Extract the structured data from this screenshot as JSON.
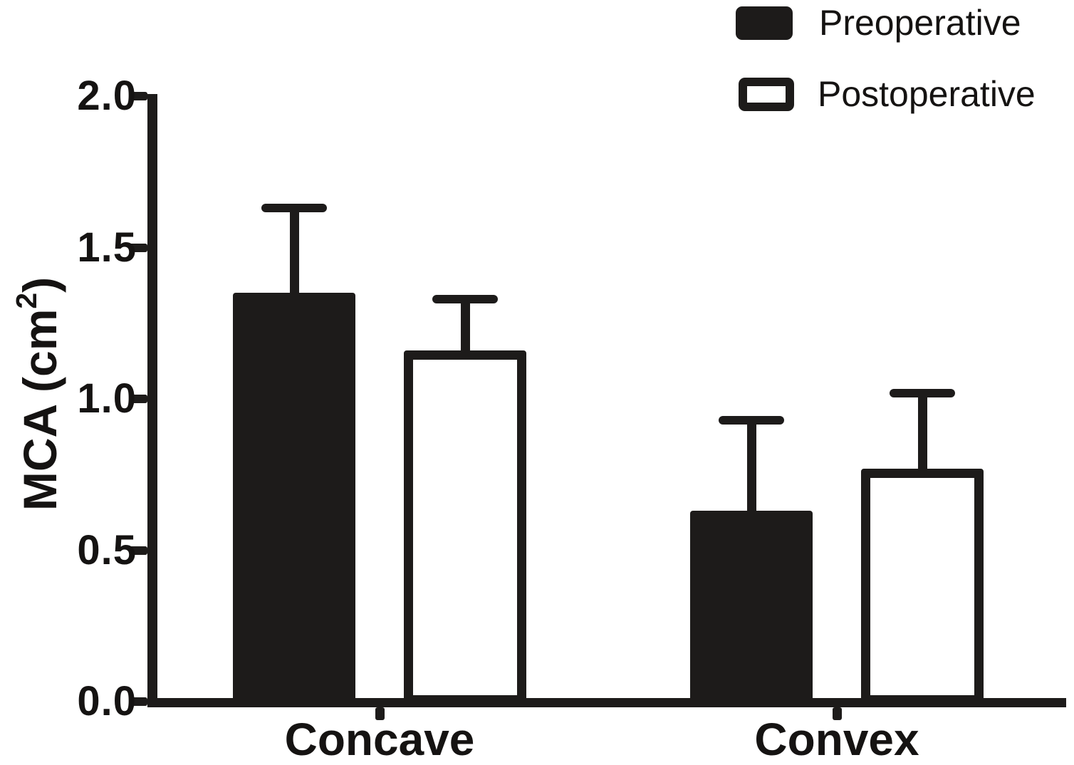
{
  "figure": {
    "background": "#ffffff",
    "ink_color": "#1d1b1a"
  },
  "legend": {
    "position": "top-right",
    "items": [
      {
        "label": "Preoperative",
        "swatch": "black-filled-rect"
      },
      {
        "label": "Postoperative",
        "swatch": "white-outlined-rect"
      }
    ]
  },
  "chart_data": {
    "type": "bar",
    "title": "",
    "xlabel": "",
    "ylabel": "MCA (cm²)",
    "ylabel_parts": {
      "main": "MCA (cm",
      "sup": "2",
      "close": ")"
    },
    "categories": [
      "Concave",
      "Convex"
    ],
    "series": [
      {
        "name": "Preoperative",
        "fill": "#1d1b1a",
        "style": "solid",
        "values": [
          1.35,
          0.63
        ],
        "upper_error": [
          0.28,
          0.3
        ]
      },
      {
        "name": "Postoperative",
        "fill": "#ffffff",
        "style": "hollow",
        "values": [
          1.16,
          0.77
        ],
        "upper_error": [
          0.17,
          0.25
        ]
      }
    ],
    "ylim": [
      0.0,
      2.0
    ],
    "yticks": [
      {
        "value": 2.0,
        "label": "2.0"
      },
      {
        "value": 1.5,
        "label": "1.5"
      },
      {
        "value": 1.0,
        "label": "1.0"
      },
      {
        "value": 0.5,
        "label": "0.5"
      },
      {
        "value": 0.0,
        "label": "0.0"
      }
    ],
    "error_bars": "upper-only with caps",
    "legend_position": "top-right",
    "grid": false
  }
}
